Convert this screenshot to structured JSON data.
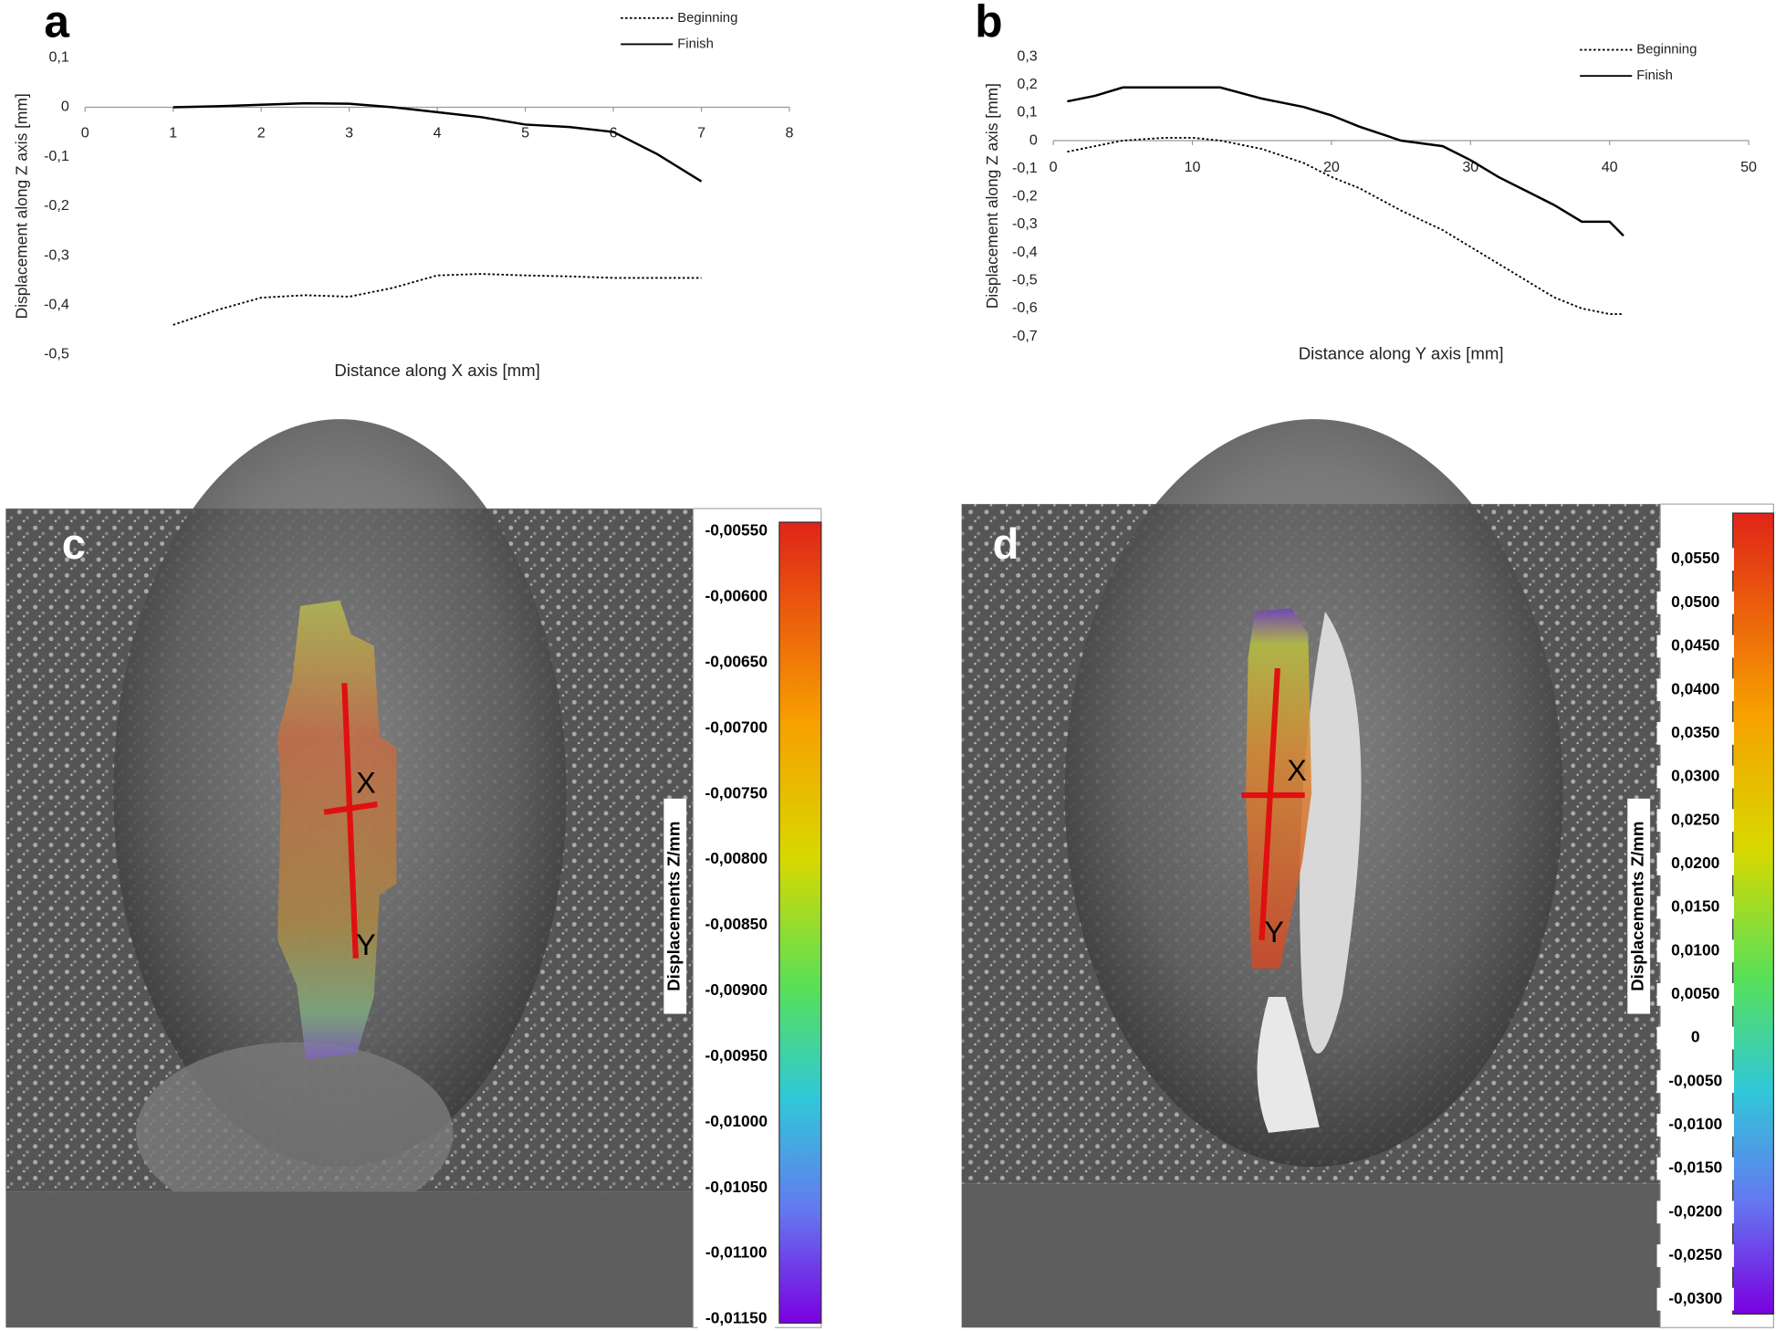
{
  "chart_data": [
    {
      "type": "line",
      "panel_label": "a",
      "x_label": "Distance along X axis  [mm]",
      "y_label": "Displacement along Z axis [mm]",
      "xlim": [
        0,
        8
      ],
      "xticks": [
        0,
        1,
        2,
        3,
        4,
        5,
        6,
        7,
        8
      ],
      "ylim": [
        -0.5,
        0.1
      ],
      "yticks": [
        {
          "value": 0.1,
          "label": "0,1"
        },
        0,
        {
          "value": -0.1,
          "label": "-0,1"
        },
        {
          "value": -0.2,
          "label": "-0,2"
        },
        {
          "value": -0.3,
          "label": "-0,3"
        },
        {
          "value": -0.4,
          "label": "-0,4"
        },
        {
          "value": -0.5,
          "label": "-0,5"
        }
      ],
      "x": [
        1,
        1.5,
        2,
        2.5,
        3,
        3.5,
        4,
        4.5,
        5,
        5.5,
        6,
        6.5,
        7
      ],
      "series": [
        {
          "name": "Beginning",
          "color": "#000000",
          "line_style": "dotted",
          "values": [
            -0.44,
            -0.41,
            -0.385,
            -0.38,
            -0.383,
            -0.365,
            -0.34,
            -0.337,
            -0.34,
            -0.342,
            -0.345,
            -0.345,
            -0.345
          ]
        },
        {
          "name": "Finish",
          "color": "#000000",
          "line_style": "solid",
          "values": [
            0,
            0.002,
            0.005,
            0.008,
            0.007,
            0,
            -0.01,
            -0.02,
            -0.035,
            -0.04,
            -0.05,
            -0.095,
            -0.15
          ]
        }
      ]
    },
    {
      "type": "line",
      "panel_label": "b",
      "x_label": "Distance along Y axis [mm]",
      "y_label": "Displacement along Z axis [mm]",
      "xlim": [
        0,
        50
      ],
      "xticks": [
        0,
        10,
        20,
        30,
        40,
        50
      ],
      "ylim": [
        -0.7,
        0.3
      ],
      "yticks": [
        {
          "value": 0.3,
          "label": "0,3"
        },
        {
          "value": 0.2,
          "label": "0,2"
        },
        {
          "value": 0.1,
          "label": "0,1"
        },
        0,
        {
          "value": -0.1,
          "label": "-0,1"
        },
        {
          "value": -0.2,
          "label": "-0,2"
        },
        {
          "value": -0.3,
          "label": "-0,3"
        },
        {
          "value": -0.4,
          "label": "-0,4"
        },
        {
          "value": -0.5,
          "label": "-0,5"
        },
        {
          "value": -0.6,
          "label": "-0,6"
        },
        {
          "value": -0.7,
          "label": "-0,7"
        }
      ],
      "x": [
        1,
        3,
        5,
        8,
        10,
        12,
        15,
        18,
        20,
        22,
        25,
        28,
        30,
        32,
        34,
        36,
        38,
        40,
        41
      ],
      "series": [
        {
          "name": "Beginning",
          "color": "#000000",
          "line_style": "dotted",
          "values": [
            -0.04,
            -0.02,
            0,
            0.01,
            0.01,
            0,
            -0.03,
            -0.08,
            -0.13,
            -0.17,
            -0.25,
            -0.32,
            -0.38,
            -0.44,
            -0.5,
            -0.56,
            -0.6,
            -0.62,
            -0.62
          ]
        },
        {
          "name": "Finish",
          "color": "#000000",
          "line_style": "solid",
          "values": [
            0.14,
            0.16,
            0.19,
            0.19,
            0.19,
            0.19,
            0.15,
            0.12,
            0.09,
            0.05,
            0,
            -0.02,
            -0.07,
            -0.13,
            -0.18,
            -0.23,
            -0.29,
            -0.29,
            -0.34
          ]
        }
      ]
    },
    {
      "type": "colormap",
      "panel_label": "c",
      "colorbar_label": "Displacements Z/mm",
      "markers": [
        "X",
        "Y"
      ],
      "clim": [
        -0.01153,
        -0.00543
      ],
      "ticks": [
        {
          "value": -0.0055,
          "label": "-0,00550"
        },
        {
          "value": -0.006,
          "label": "-0,00600"
        },
        {
          "value": -0.0065,
          "label": "-0,00650"
        },
        {
          "value": -0.007,
          "label": "-0,00700"
        },
        {
          "value": -0.0075,
          "label": "-0,00750"
        },
        {
          "value": -0.008,
          "label": "-0,00800"
        },
        {
          "value": -0.0085,
          "label": "-0,00850"
        },
        {
          "value": -0.009,
          "label": "-0,00900"
        },
        {
          "value": -0.0095,
          "label": "-0,00950"
        },
        {
          "value": -0.01,
          "label": "-0,01000"
        },
        {
          "value": -0.0105,
          "label": "-0,01050"
        },
        {
          "value": -0.011,
          "label": "-0,01100"
        },
        {
          "value": -0.0115,
          "label": "-0,01150"
        }
      ]
    },
    {
      "type": "colormap",
      "panel_label": "d",
      "colorbar_label": "Displacements Z/mm",
      "markers": [
        "X",
        "Y"
      ],
      "clim": [
        -0.0317,
        0.0603
      ],
      "ticks": [
        {
          "value": 0.055,
          "label": "0,0550"
        },
        {
          "value": 0.05,
          "label": "0,0500"
        },
        {
          "value": 0.045,
          "label": "0,0450"
        },
        {
          "value": 0.04,
          "label": "0,0400"
        },
        {
          "value": 0.035,
          "label": "0,0350"
        },
        {
          "value": 0.03,
          "label": "0,0300"
        },
        {
          "value": 0.025,
          "label": "0,0250"
        },
        {
          "value": 0.02,
          "label": "0,0200"
        },
        {
          "value": 0.015,
          "label": "0,0150"
        },
        {
          "value": 0.01,
          "label": "0,0100"
        },
        {
          "value": 0.005,
          "label": "0,0050"
        },
        0,
        {
          "value": -0.005,
          "label": "-0,0050"
        },
        {
          "value": -0.01,
          "label": "-0,0100"
        },
        {
          "value": -0.015,
          "label": "-0,0150"
        },
        {
          "value": -0.02,
          "label": "-0,0200"
        },
        {
          "value": -0.025,
          "label": "-0,0250"
        },
        {
          "value": -0.03,
          "label": "-0,0300"
        }
      ]
    }
  ]
}
